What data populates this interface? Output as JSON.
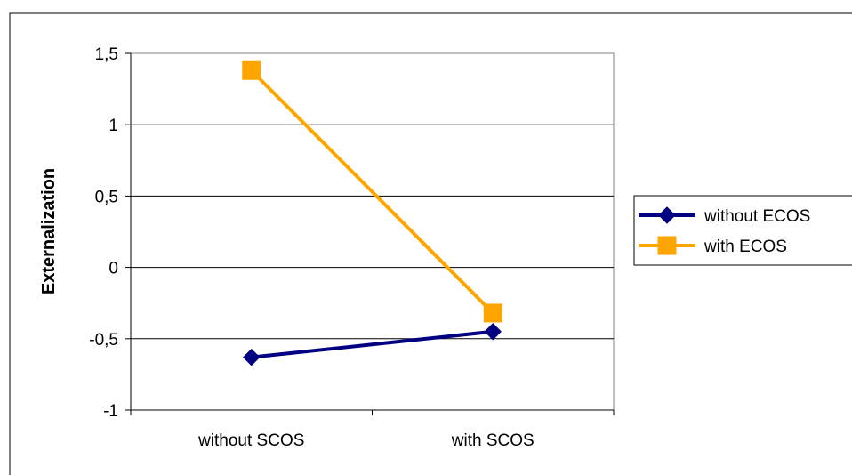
{
  "chart_data": {
    "type": "line",
    "title": "",
    "xlabel": "",
    "ylabel": "Externalization",
    "categories": [
      "without SCOS",
      "with SCOS"
    ],
    "ylim": [
      -1,
      1.5
    ],
    "yticks": [
      1.5,
      1,
      0.5,
      0,
      -0.5,
      -1
    ],
    "ytick_labels": [
      "1,5",
      "1",
      "0,5",
      "0",
      "-0,5",
      "-1"
    ],
    "grid": true,
    "legend_position": "right",
    "series": [
      {
        "name": "without ECOS",
        "values": [
          -0.63,
          -0.45
        ],
        "color": "#000080",
        "marker": "diamond"
      },
      {
        "name": "with ECOS",
        "values": [
          1.38,
          -0.32
        ],
        "color": "#FFA500",
        "marker": "square"
      }
    ]
  }
}
